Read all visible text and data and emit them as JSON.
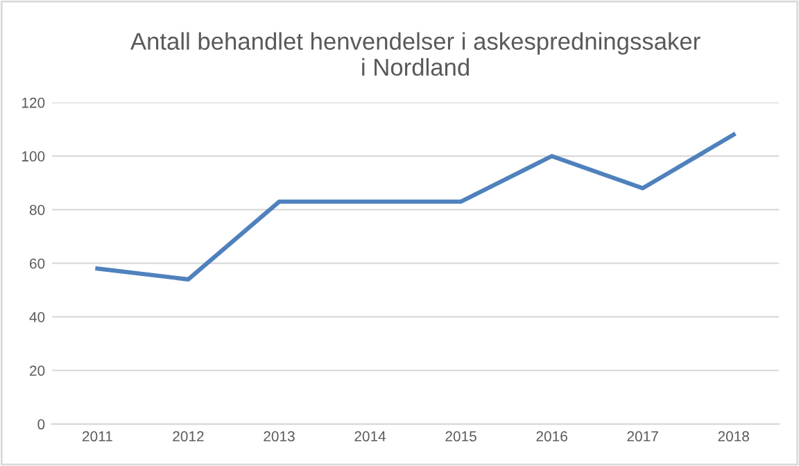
{
  "chart_data": {
    "type": "line",
    "title": "Antall behandlet henvendelser i askespredningssaker\ni Nordland",
    "categories": [
      "2011",
      "2012",
      "2013",
      "2014",
      "2015",
      "2016",
      "2017",
      "2018"
    ],
    "series": [
      {
        "color": "#4f81bd",
        "values": [
          58,
          54,
          83,
          83,
          83,
          100,
          88,
          108
        ]
      }
    ],
    "ylim": [
      0,
      120
    ],
    "yticks": [
      0,
      20,
      40,
      60,
      80,
      100,
      120
    ],
    "grid": "y",
    "legend": false,
    "marker": "none",
    "line_style": "solid"
  }
}
